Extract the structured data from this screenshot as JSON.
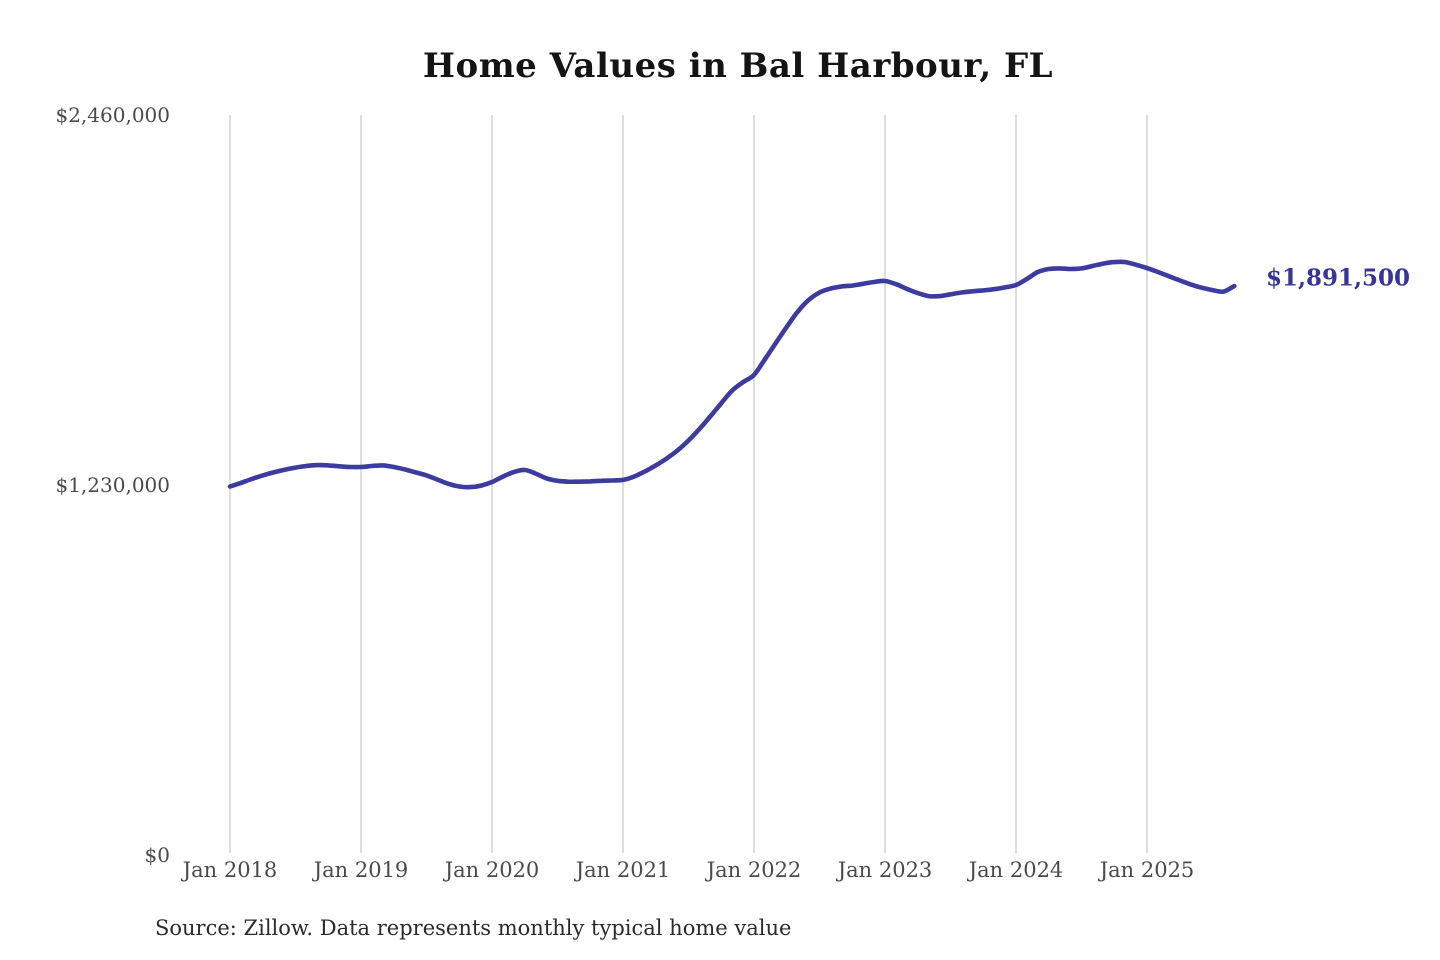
{
  "title": "Home Values in Bal Harbour, FL",
  "source_note": "Source: Zillow. Data represents monthly typical home value",
  "end_label": "$1,891,500",
  "colors": {
    "line": "#3c3ca0",
    "end_label": "#34349a",
    "grid": "#cccccc",
    "axis_text": "#4a4a4a",
    "title_text": "#141414"
  },
  "chart_data": {
    "type": "line",
    "title": "Home Values in Bal Harbour, FL",
    "xlabel": "",
    "ylabel": "",
    "x_start": "2018-01",
    "x_frequency": "monthly",
    "x_end": "2025-09",
    "x_tick_labels": [
      "Jan 2018",
      "Jan 2019",
      "Jan 2020",
      "Jan 2021",
      "Jan 2022",
      "Jan 2023",
      "Jan 2024",
      "Jan 2025"
    ],
    "y_ticks": [
      0,
      1230000,
      2460000
    ],
    "y_tick_labels": [
      "$0",
      "$1,230,000",
      "$2,460,000"
    ],
    "ylim": [
      0,
      2460000
    ],
    "grid": "vertical-only",
    "legend_position": "none",
    "end_value": 1891500,
    "series": [
      {
        "name": "Monthly typical home value",
        "values": [
          1225000,
          1237000,
          1250000,
          1262000,
          1272000,
          1281000,
          1288000,
          1293000,
          1296000,
          1295000,
          1292000,
          1290000,
          1290000,
          1293000,
          1295000,
          1290000,
          1282000,
          1272000,
          1262000,
          1248000,
          1234000,
          1225000,
          1223000,
          1228000,
          1240000,
          1258000,
          1273000,
          1280000,
          1268000,
          1252000,
          1244000,
          1241000,
          1241000,
          1242000,
          1244000,
          1245000,
          1247000,
          1258000,
          1275000,
          1295000,
          1318000,
          1345000,
          1378000,
          1416000,
          1458000,
          1502000,
          1544000,
          1572000,
          1596000,
          1648000,
          1702000,
          1756000,
          1806000,
          1845000,
          1870000,
          1883000,
          1890000,
          1893000,
          1899000,
          1905000,
          1908000,
          1898000,
          1882000,
          1868000,
          1858000,
          1858000,
          1864000,
          1870000,
          1874000,
          1877000,
          1881000,
          1887000,
          1895000,
          1915000,
          1938000,
          1948000,
          1950000,
          1948000,
          1950000,
          1958000,
          1966000,
          1971000,
          1971000,
          1962000,
          1951000,
          1938000,
          1924000,
          1910000,
          1897000,
          1886000,
          1878000,
          1873000,
          1891500
        ]
      }
    ]
  }
}
